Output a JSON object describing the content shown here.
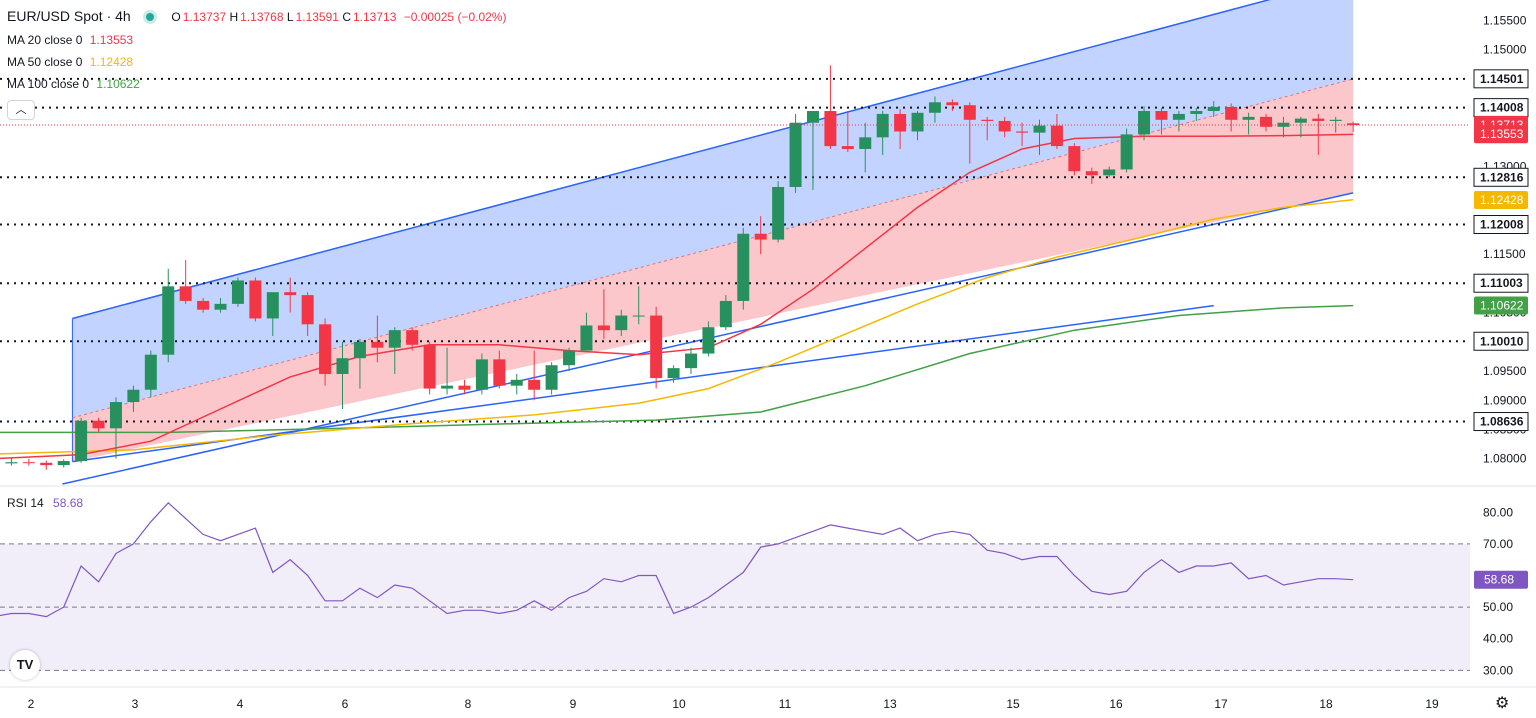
{
  "header": {
    "symbol": "EUR/USD Spot · 4h",
    "status_dot_color": "#26a69a",
    "open_label": "O",
    "open": "1.13737",
    "high_label": "H",
    "high": "1.13768",
    "low_label": "L",
    "low": "1.13591",
    "close_label": "C",
    "close": "1.13713",
    "change": "−0.00025 (−0.02%)",
    "ohlc_color": "#f23645"
  },
  "indicators": [
    {
      "label": "MA 20 close 0",
      "value": "1.13553",
      "color": "#f23645"
    },
    {
      "label": "MA 50 close 0",
      "value": "1.12428",
      "color": "#f5b800"
    },
    {
      "label": "MA 100 close 0",
      "value": "1.10622",
      "color": "#43a047"
    }
  ],
  "collapse_icon": "chevron-up-icon",
  "rsi_label": "RSI 14",
  "rsi_value": "58.68",
  "chart_data": {
    "type": "candlestick",
    "price_axis": {
      "ticks": [
        "1.15500",
        "1.15000",
        "1.14500",
        "1.14000",
        "1.13500",
        "1.13000",
        "1.12500",
        "1.12000",
        "1.11500",
        "1.11000",
        "1.10500",
        "1.10000",
        "1.09500",
        "1.09000",
        "1.08500",
        "1.08000"
      ],
      "range": [
        1.0755,
        1.1585
      ]
    },
    "levels": [
      {
        "label": "1.14501",
        "value": 1.14501
      },
      {
        "label": "1.14008",
        "value": 1.14008
      },
      {
        "label": "1.12816",
        "value": 1.12816
      },
      {
        "label": "1.12008",
        "value": 1.12008
      },
      {
        "label": "1.11003",
        "value": 1.11003
      },
      {
        "label": "1.10010",
        "value": 1.1001
      },
      {
        "label": "1.08636",
        "value": 1.08636
      }
    ],
    "badges": [
      {
        "label": "1.13713",
        "value": 1.13713,
        "color": "#f23645"
      },
      {
        "label": "1.13553",
        "value": 1.13553,
        "color": "#f23645"
      },
      {
        "label": "1.12428",
        "value": 1.12428,
        "color": "#f5b800"
      },
      {
        "label": "1.10622",
        "value": 1.10622,
        "color": "#43a047"
      }
    ],
    "x_labels": [
      {
        "label": "2",
        "t": 2
      },
      {
        "label": "3",
        "t": 3
      },
      {
        "label": "4",
        "t": 4
      },
      {
        "label": "6",
        "t": 5
      },
      {
        "label": "8",
        "t": 6
      },
      {
        "label": "9",
        "t": 7
      },
      {
        "label": "10",
        "t": 8
      },
      {
        "label": "11",
        "t": 9
      },
      {
        "label": "13",
        "t": 10
      },
      {
        "label": "15",
        "t": 11
      },
      {
        "label": "16",
        "t": 12
      },
      {
        "label": "17",
        "t": 13
      },
      {
        "label": "18",
        "t": 14
      },
      {
        "label": "19",
        "t": 15
      }
    ],
    "candles": [
      [
        1.0795,
        1.0801,
        1.0788,
        1.0792
      ],
      [
        1.0792,
        1.0801,
        1.0788,
        1.0794
      ],
      [
        1.0794,
        1.08,
        1.0788,
        1.0793
      ],
      [
        1.0793,
        1.0797,
        1.0781,
        1.0789
      ],
      [
        1.0789,
        1.0799,
        1.0785,
        1.0796
      ],
      [
        1.0796,
        1.087,
        1.0793,
        1.0865
      ],
      [
        1.0865,
        1.087,
        1.0845,
        1.0852
      ],
      [
        1.0852,
        1.0905,
        1.08,
        1.0897
      ],
      [
        1.0897,
        1.0925,
        1.088,
        1.0918
      ],
      [
        1.0918,
        1.0985,
        1.0905,
        1.0978
      ],
      [
        1.0978,
        1.1125,
        1.0965,
        1.1095
      ],
      [
        1.1095,
        1.114,
        1.1065,
        1.107
      ],
      [
        1.107,
        1.1075,
        1.105,
        1.1055
      ],
      [
        1.1055,
        1.1075,
        1.105,
        1.1065
      ],
      [
        1.1065,
        1.111,
        1.106,
        1.1105
      ],
      [
        1.1105,
        1.111,
        1.1035,
        1.104
      ],
      [
        1.104,
        1.108,
        1.101,
        1.1085
      ],
      [
        1.1085,
        1.111,
        1.105,
        1.108
      ],
      [
        1.108,
        1.1085,
        1.101,
        1.103
      ],
      [
        1.103,
        1.104,
        1.0925,
        1.0945
      ],
      [
        1.0945,
        1.1,
        1.0885,
        1.0972
      ],
      [
        1.0972,
        1.1005,
        1.092,
        1.1
      ],
      [
        1.1,
        1.1045,
        1.0965,
        1.099
      ],
      [
        1.099,
        1.1025,
        1.0945,
        1.102
      ],
      [
        1.102,
        1.1025,
        1.0985,
        1.0995
      ],
      [
        1.0995,
        1.1,
        1.091,
        1.092
      ],
      [
        1.092,
        1.099,
        1.091,
        1.0925
      ],
      [
        1.0925,
        1.0935,
        1.091,
        1.0918
      ],
      [
        1.0918,
        1.098,
        1.091,
        1.097
      ],
      [
        1.097,
        1.0985,
        1.092,
        1.0925
      ],
      [
        1.0925,
        1.0945,
        1.091,
        1.0935
      ],
      [
        1.0935,
        1.0985,
        1.09,
        1.0918
      ],
      [
        1.0918,
        1.0965,
        1.091,
        1.096
      ],
      [
        1.096,
        1.099,
        1.095,
        1.0985
      ],
      [
        1.0985,
        1.105,
        1.0985,
        1.1028
      ],
      [
        1.1028,
        1.109,
        1.1005,
        1.102
      ],
      [
        1.102,
        1.1055,
        1.101,
        1.1045
      ],
      [
        1.1045,
        1.1095,
        1.103,
        1.1045
      ],
      [
        1.1045,
        1.106,
        1.092,
        1.0938
      ],
      [
        1.0938,
        1.096,
        1.093,
        1.0955
      ],
      [
        1.0955,
        1.099,
        1.0945,
        1.098
      ],
      [
        1.098,
        1.1035,
        1.0975,
        1.1025
      ],
      [
        1.1025,
        1.108,
        1.102,
        1.107
      ],
      [
        1.107,
        1.1195,
        1.1055,
        1.1185
      ],
      [
        1.1185,
        1.1215,
        1.115,
        1.1175
      ],
      [
        1.1175,
        1.1275,
        1.117,
        1.1265
      ],
      [
        1.1265,
        1.139,
        1.1255,
        1.1375
      ],
      [
        1.1375,
        1.1395,
        1.126,
        1.1395
      ],
      [
        1.1395,
        1.1473,
        1.133,
        1.1335
      ],
      [
        1.1335,
        1.1395,
        1.1325,
        1.133
      ],
      [
        1.133,
        1.1375,
        1.129,
        1.135
      ],
      [
        1.135,
        1.1395,
        1.132,
        1.139
      ],
      [
        1.139,
        1.1398,
        1.133,
        1.136
      ],
      [
        1.136,
        1.1395,
        1.1345,
        1.1392
      ],
      [
        1.1392,
        1.142,
        1.1375,
        1.141
      ],
      [
        1.141,
        1.1415,
        1.1395,
        1.1405
      ],
      [
        1.1405,
        1.141,
        1.1305,
        1.138
      ],
      [
        1.138,
        1.1385,
        1.1345,
        1.1378
      ],
      [
        1.1378,
        1.1385,
        1.135,
        1.136
      ],
      [
        1.136,
        1.1375,
        1.1335,
        1.1358
      ],
      [
        1.1358,
        1.138,
        1.132,
        1.137
      ],
      [
        1.137,
        1.139,
        1.133,
        1.1335
      ],
      [
        1.1335,
        1.134,
        1.1285,
        1.1292
      ],
      [
        1.1292,
        1.1298,
        1.127,
        1.1285
      ],
      [
        1.1285,
        1.13,
        1.1282,
        1.1295
      ],
      [
        1.1295,
        1.1365,
        1.129,
        1.1355
      ],
      [
        1.1355,
        1.1403,
        1.1345,
        1.1395
      ],
      [
        1.1395,
        1.14,
        1.1355,
        1.138
      ],
      [
        1.138,
        1.1395,
        1.136,
        1.139
      ],
      [
        1.139,
        1.14,
        1.1378,
        1.1395
      ],
      [
        1.1395,
        1.1412,
        1.1385,
        1.1402
      ],
      [
        1.1402,
        1.1408,
        1.136,
        1.138
      ],
      [
        1.138,
        1.1392,
        1.1355,
        1.1385
      ],
      [
        1.1385,
        1.139,
        1.136,
        1.1368
      ],
      [
        1.1368,
        1.1385,
        1.135,
        1.1375
      ],
      [
        1.1375,
        1.1385,
        1.135,
        1.1382
      ],
      [
        1.1382,
        1.139,
        1.132,
        1.1378
      ],
      [
        1.1378,
        1.1385,
        1.1358,
        1.138
      ],
      [
        1.1374,
        1.1377,
        1.1359,
        1.1371
      ]
    ],
    "ma20": [
      [
        0,
        1.08
      ],
      [
        5,
        1.0807
      ],
      [
        9,
        1.083
      ],
      [
        13,
        1.0885
      ],
      [
        17,
        1.094
      ],
      [
        21,
        1.0975
      ],
      [
        25,
        1.0995
      ],
      [
        29,
        1.0995
      ],
      [
        33,
        1.0985
      ],
      [
        37,
        1.0978
      ],
      [
        41,
        1.099
      ],
      [
        44,
        1.103
      ],
      [
        47,
        1.109
      ],
      [
        50,
        1.116
      ],
      [
        53,
        1.123
      ],
      [
        56,
        1.129
      ],
      [
        59,
        1.133
      ],
      [
        62,
        1.1348
      ],
      [
        66,
        1.1352
      ],
      [
        70,
        1.1352
      ],
      [
        74,
        1.1353
      ],
      [
        78,
        1.1355
      ]
    ],
    "ma50": [
      [
        0,
        1.0808
      ],
      [
        8,
        1.0815
      ],
      [
        16,
        1.084
      ],
      [
        24,
        1.086
      ],
      [
        31,
        1.0875
      ],
      [
        37,
        1.0895
      ],
      [
        41,
        1.092
      ],
      [
        45,
        1.0965
      ],
      [
        49,
        1.1015
      ],
      [
        53,
        1.1065
      ],
      [
        57,
        1.111
      ],
      [
        61,
        1.1145
      ],
      [
        66,
        1.118
      ],
      [
        70,
        1.121
      ],
      [
        74,
        1.123
      ],
      [
        78,
        1.1243
      ]
    ],
    "ma100": [
      [
        0,
        1.0845
      ],
      [
        10,
        1.0845
      ],
      [
        20,
        1.0852
      ],
      [
        30,
        1.086
      ],
      [
        38,
        1.0866
      ],
      [
        44,
        1.088
      ],
      [
        50,
        1.0925
      ],
      [
        56,
        1.098
      ],
      [
        62,
        1.102
      ],
      [
        68,
        1.1045
      ],
      [
        74,
        1.1058
      ],
      [
        78,
        1.1062
      ]
    ],
    "channel": {
      "upper": [
        [
          4.5,
          1.104
        ],
        [
          75,
          1.16
        ]
      ],
      "mid": [
        [
          4.5,
          1.087
        ],
        [
          78,
          1.145
        ]
      ],
      "lower": [
        [
          4.5,
          1.0795
        ],
        [
          78,
          1.1255
        ]
      ]
    },
    "trendline": [
      [
        4.5,
        1.0795
      ],
      [
        70,
        1.1062
      ]
    ],
    "rsi": {
      "ticks": [
        "80.00",
        "70.00",
        "50.00",
        "40.00",
        "30.00"
      ],
      "range": [
        26,
        88
      ],
      "levels": [
        70,
        50,
        30
      ],
      "values": [
        47,
        48,
        48,
        47,
        50,
        63,
        58,
        67,
        70,
        77,
        83,
        78,
        73,
        71,
        73,
        75,
        61,
        65,
        60,
        52,
        52,
        56,
        53,
        57,
        56,
        52,
        48,
        49,
        49,
        48,
        49,
        52,
        49,
        53,
        55,
        59,
        58,
        60,
        60,
        48,
        50,
        53,
        57,
        61,
        69,
        70,
        72,
        74,
        76,
        75,
        74,
        73,
        75,
        71,
        73,
        74,
        73,
        68,
        67,
        65,
        66,
        66,
        60,
        55,
        54,
        55,
        61,
        65,
        61,
        63,
        63,
        64,
        59,
        60,
        57,
        58,
        59,
        59,
        58.68
      ]
    }
  }
}
